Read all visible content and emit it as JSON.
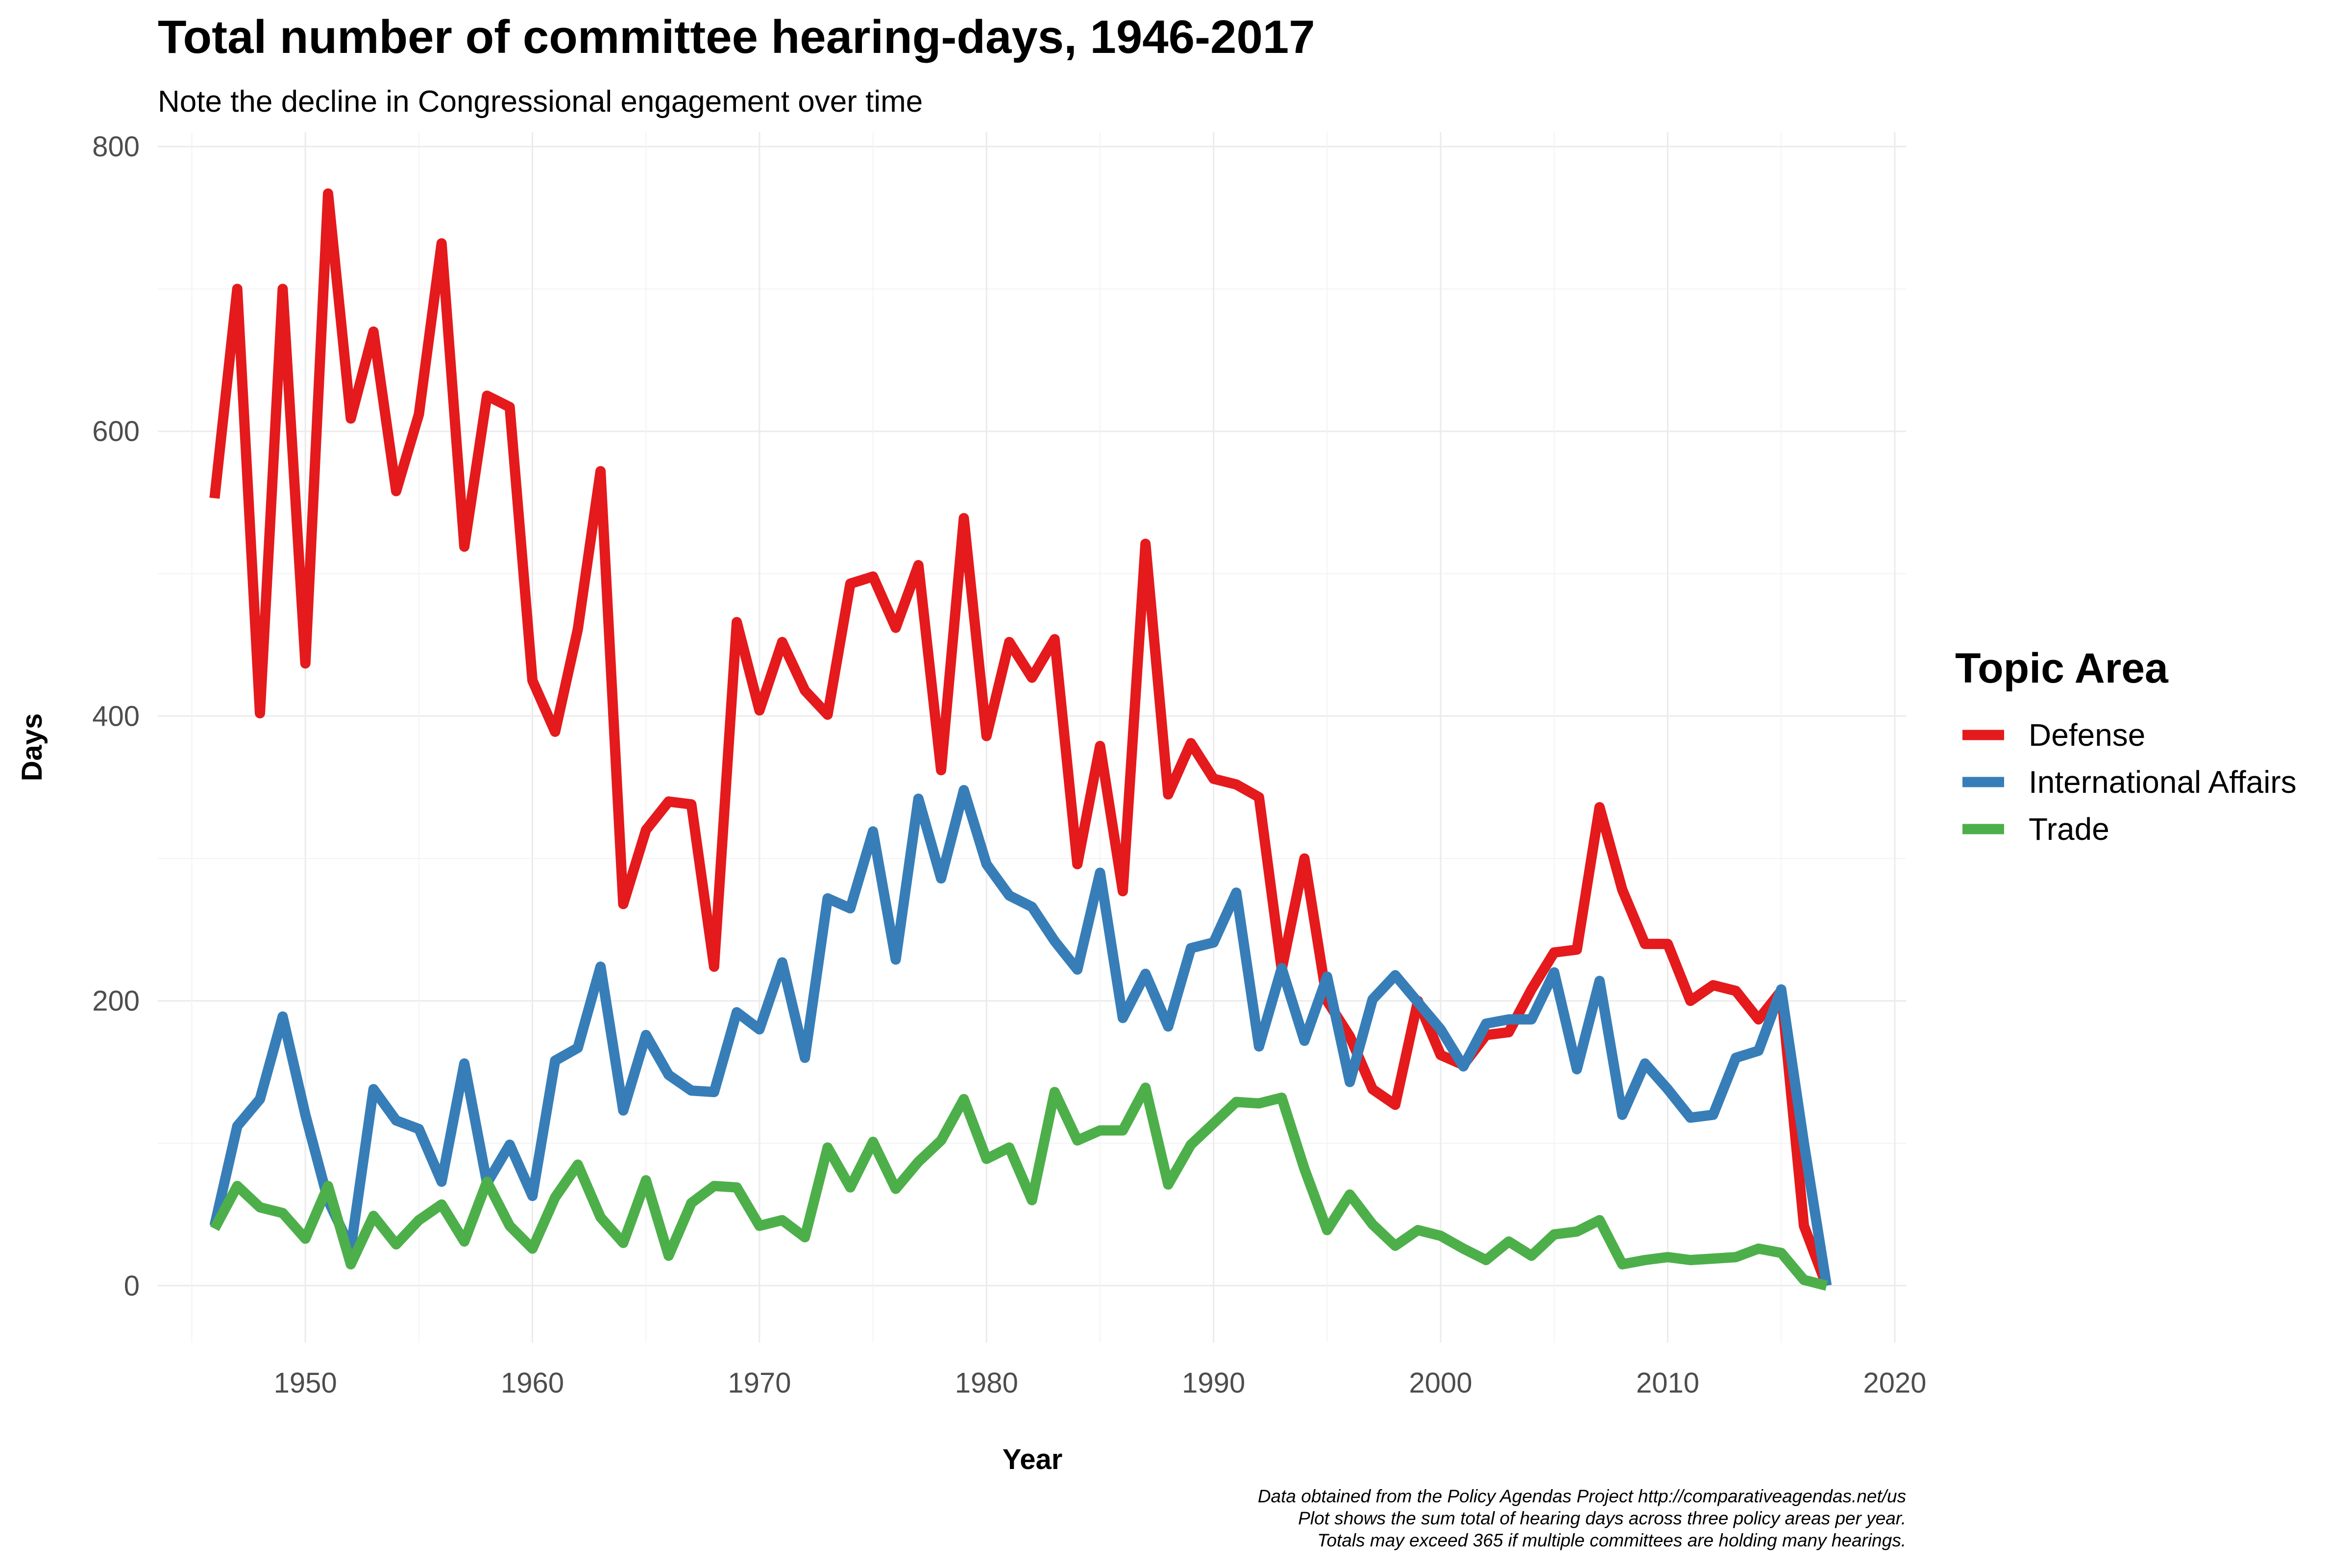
{
  "chart_data": {
    "type": "line",
    "title": "Total number of committee hearing-days, 1946-2017",
    "subtitle": "Note the decline in Congressional engagement over time",
    "xlabel": "Year",
    "ylabel": "Days",
    "xlim": [
      1943.5,
      2020.5
    ],
    "ylim": [
      -40,
      810
    ],
    "x_ticks": [
      1950,
      1960,
      1970,
      1980,
      1990,
      2000,
      2010,
      2020
    ],
    "y_ticks": [
      0,
      200,
      400,
      600,
      800
    ],
    "grid": true,
    "legend": {
      "title": "Topic Area",
      "position": "right"
    },
    "caption": [
      "Data obtained from the Policy Agendas Project http://comparativeagendas.net/us",
      "Plot shows the sum total of hearing days across three policy areas per year.",
      "Totals may exceed 365 if multiple committees are holding many hearings."
    ],
    "x": [
      1946,
      1947,
      1948,
      1949,
      1950,
      1951,
      1952,
      1953,
      1954,
      1955,
      1956,
      1957,
      1958,
      1959,
      1960,
      1961,
      1962,
      1963,
      1964,
      1965,
      1966,
      1967,
      1968,
      1969,
      1970,
      1971,
      1972,
      1973,
      1974,
      1975,
      1976,
      1977,
      1978,
      1979,
      1980,
      1981,
      1982,
      1983,
      1984,
      1985,
      1986,
      1987,
      1988,
      1989,
      1990,
      1991,
      1992,
      1993,
      1994,
      1995,
      1996,
      1997,
      1998,
      1999,
      2000,
      2001,
      2002,
      2003,
      2004,
      2005,
      2006,
      2007,
      2008,
      2009,
      2010,
      2011,
      2012,
      2013,
      2014,
      2015,
      2016,
      2017
    ],
    "series": [
      {
        "name": "Defense",
        "color": "#E41A1C",
        "values": [
          553,
          700,
          402,
          700,
          437,
          767,
          609,
          670,
          558,
          612,
          732,
          519,
          625,
          617,
          425,
          389,
          461,
          572,
          268,
          320,
          340,
          338,
          224,
          466,
          404,
          452,
          418,
          401,
          493,
          498,
          462,
          506,
          362,
          539,
          386,
          452,
          427,
          454,
          296,
          379,
          277,
          521,
          345,
          381,
          356,
          352,
          343,
          222,
          300,
          200,
          175,
          138,
          127,
          200,
          162,
          155,
          176,
          178,
          208,
          234,
          236,
          336,
          278,
          240,
          240,
          200,
          211,
          207,
          187,
          207,
          42,
          0
        ],
        "style": "solid"
      },
      {
        "name": "International Affairs",
        "color": "#377EB8",
        "values": [
          42,
          112,
          131,
          189,
          120,
          60,
          26,
          138,
          116,
          110,
          73,
          156,
          72,
          99,
          63,
          158,
          167,
          224,
          123,
          176,
          148,
          137,
          136,
          192,
          180,
          227,
          160,
          272,
          265,
          319,
          229,
          342,
          286,
          348,
          296,
          274,
          266,
          242,
          222,
          290,
          188,
          219,
          182,
          237,
          241,
          276,
          168,
          223,
          172,
          217,
          143,
          201,
          218,
          199,
          180,
          154,
          184,
          187,
          187,
          220,
          152,
          214,
          120,
          156,
          138,
          118,
          120,
          160,
          165,
          208,
          100,
          0
        ],
        "style": "solid"
      },
      {
        "name": "Trade",
        "color": "#4DAF4A",
        "values": [
          40,
          70,
          55,
          51,
          33,
          70,
          15,
          49,
          29,
          46,
          57,
          31,
          73,
          42,
          26,
          62,
          85,
          48,
          30,
          74,
          21,
          58,
          70,
          69,
          42,
          46,
          34,
          97,
          69,
          101,
          68,
          87,
          102,
          131,
          89,
          97,
          60,
          136,
          102,
          109,
          109,
          139,
          71,
          99,
          114,
          129,
          128,
          132,
          82,
          39,
          64,
          43,
          28,
          39,
          35,
          26,
          18,
          31,
          21,
          36,
          38,
          46,
          15,
          18,
          20,
          18,
          19,
          20,
          26,
          23,
          4,
          0
        ],
        "style": "solid"
      }
    ]
  }
}
